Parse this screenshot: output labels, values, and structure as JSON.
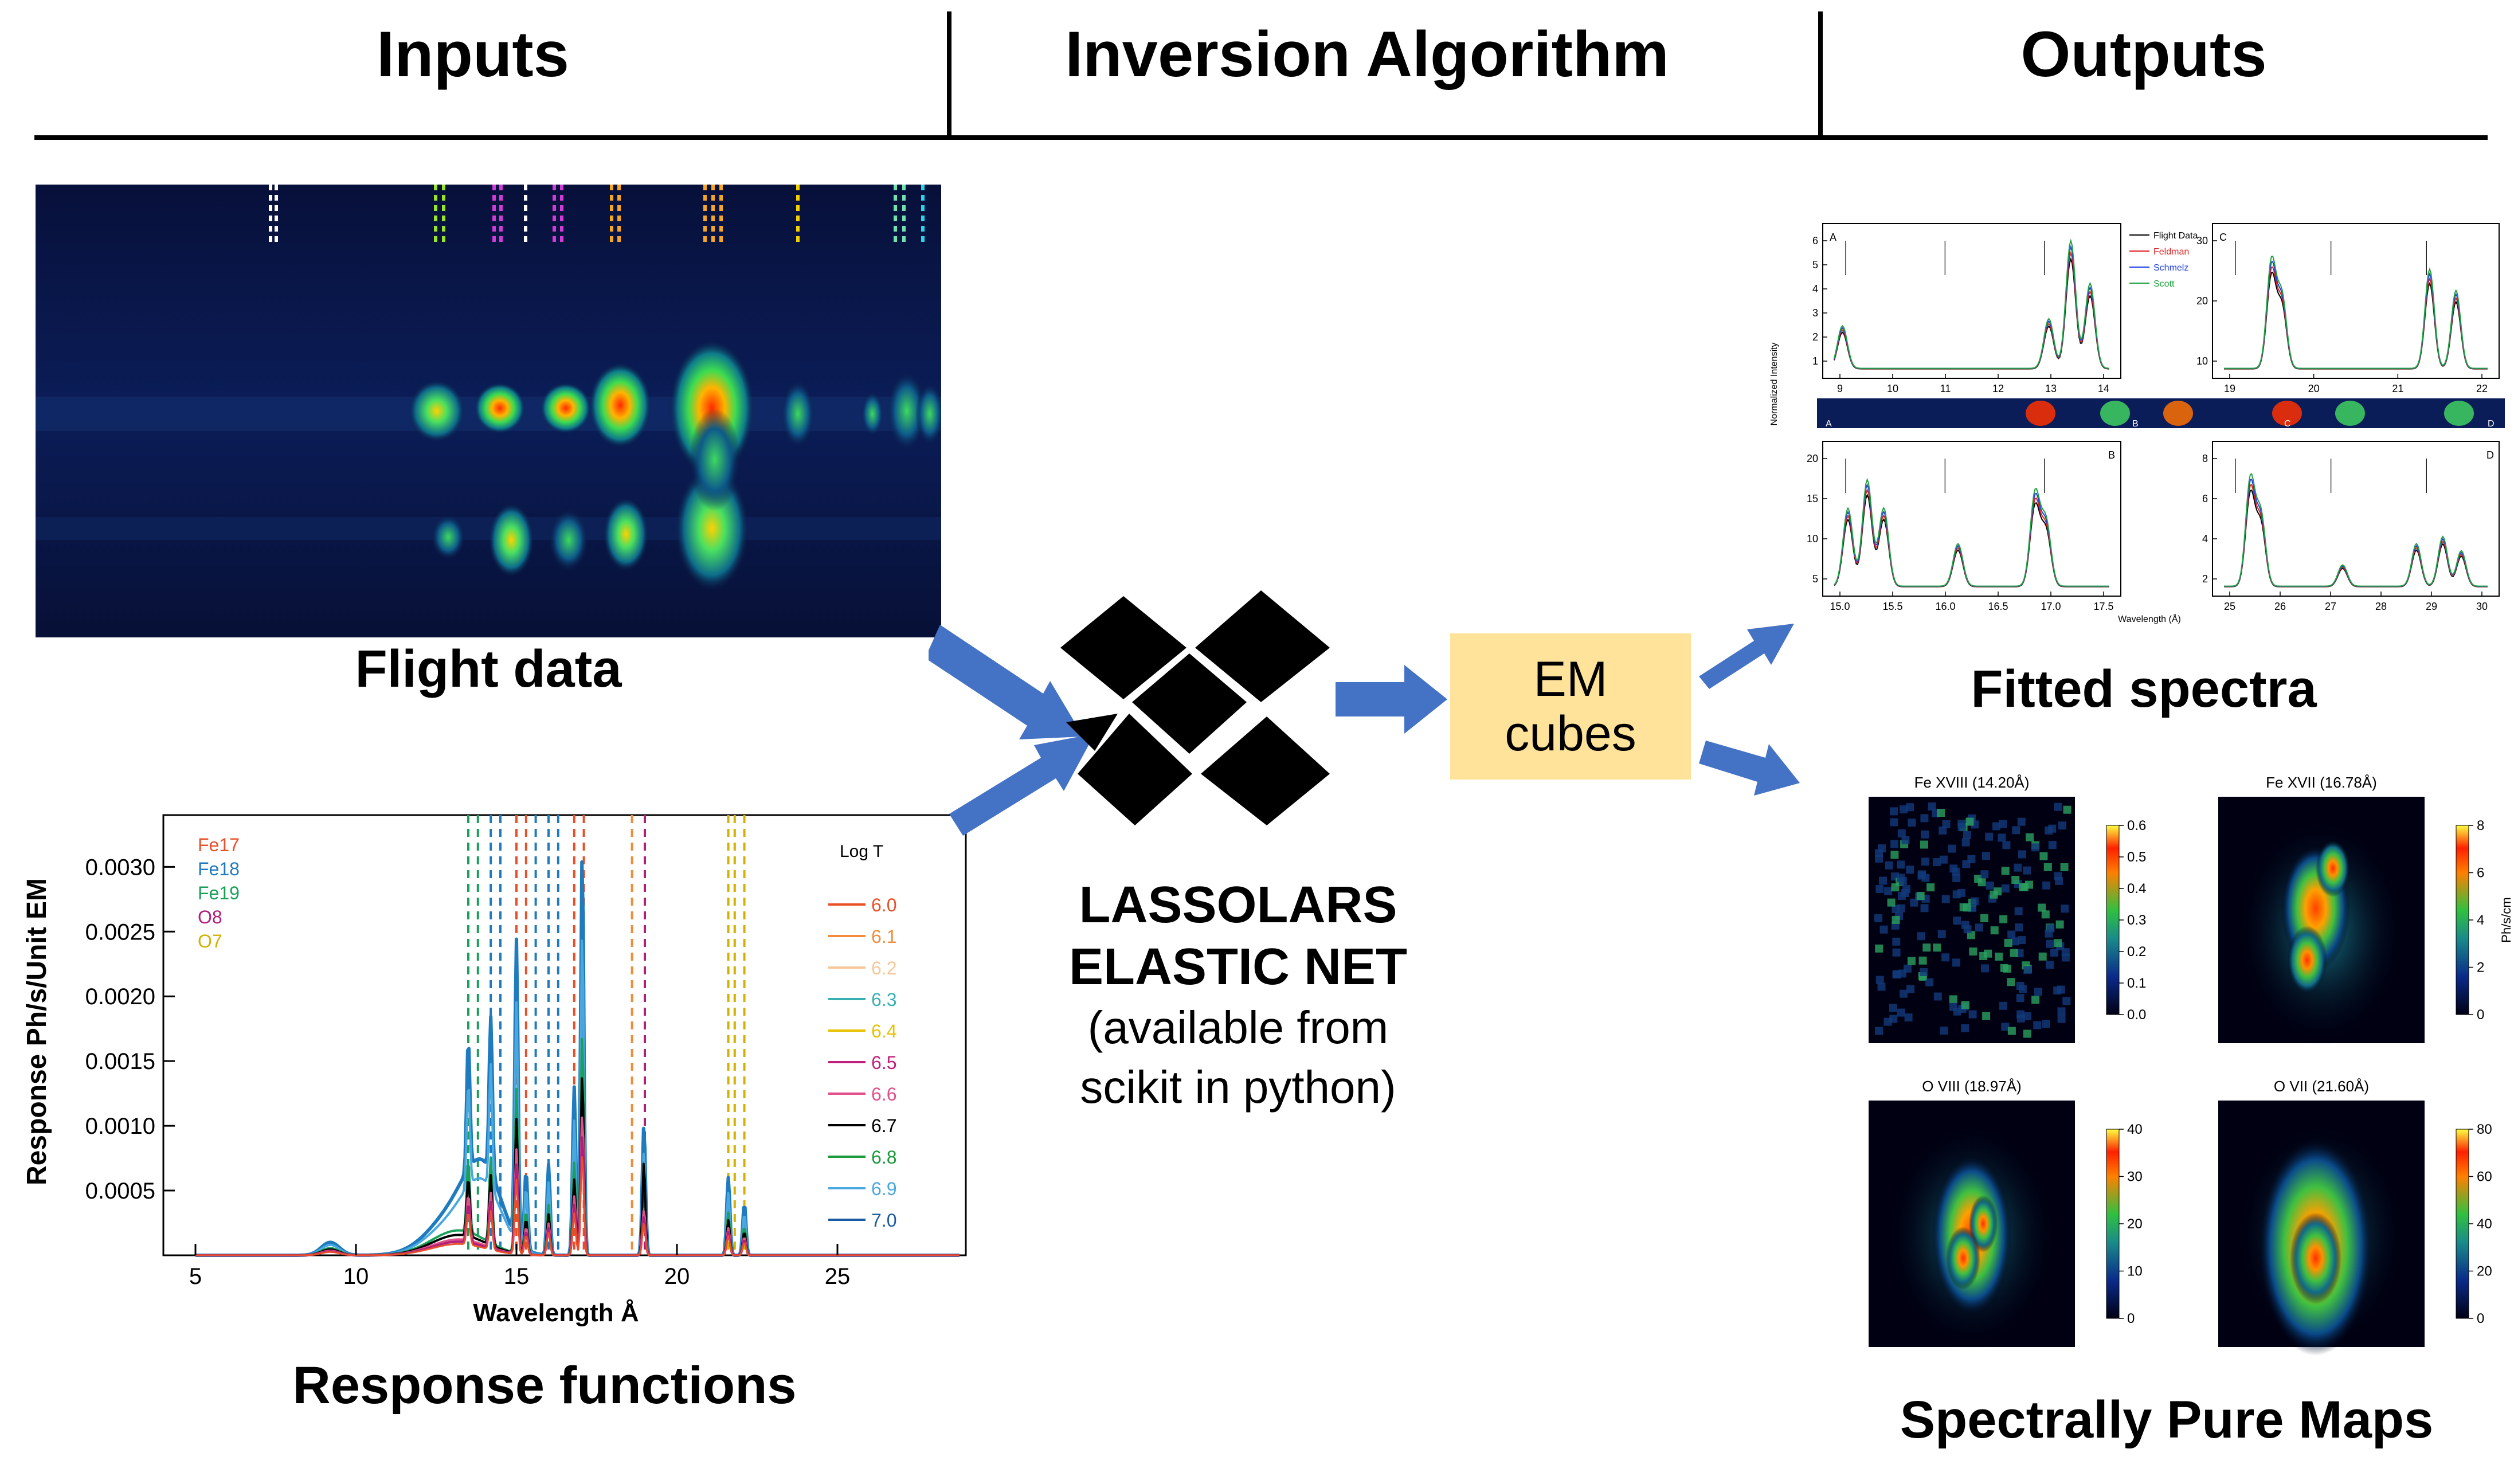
{
  "headers": {
    "inputs": "Inputs",
    "algorithm": "Inversion Algorithm",
    "outputs": "Outputs"
  },
  "captions": {
    "flight_data": "Flight data",
    "response_functions": "Response functions",
    "fitted_spectra": "Fitted spectra",
    "pure_maps": "Spectrally Pure Maps"
  },
  "algorithm": {
    "line1": "LASSOLARS",
    "line2": "ELASTIC NET",
    "line3": "(available from",
    "line4": "scikit in python)"
  },
  "em_box": {
    "line1": "EM",
    "line2": "cubes"
  },
  "colors": {
    "arrow": "#4472c4",
    "em_box": "#ffe39a",
    "flight_bg": "#0a1540"
  },
  "flight_data": {
    "marker_colors": [
      "#ffffff",
      "#9be22a",
      "#d13cd6",
      "#ffffff",
      "#d13cd6",
      "#f5a623",
      "#f5a623",
      "#f5d000",
      "#6fe2b0",
      "#2ad4e8"
    ]
  },
  "response_chart": {
    "type": "line",
    "xlabel": "Wavelength Å",
    "ylabel": "Response Ph/s/Unit EM",
    "xlim": [
      4,
      29
    ],
    "ylim": [
      0,
      0.0034
    ],
    "xticks": [
      5,
      10,
      15,
      20,
      25
    ],
    "yticks": [
      0.0005,
      0.001,
      0.0015,
      0.002,
      0.0025,
      0.003
    ],
    "ytick_labels": [
      "0.0005",
      "0.0010",
      "0.0015",
      "0.0020",
      "0.0025",
      "0.0030"
    ],
    "ions": [
      {
        "name": "Fe17",
        "color": "#e8502a"
      },
      {
        "name": "Fe18",
        "color": "#1f7bbf"
      },
      {
        "name": "Fe19",
        "color": "#1aa05a"
      },
      {
        "name": "O8",
        "color": "#b0207a"
      },
      {
        "name": "O7",
        "color": "#d4b000"
      }
    ],
    "legend_title": "Log T",
    "logT": [
      {
        "name": "6.0",
        "color": "#e8502a"
      },
      {
        "name": "6.1",
        "color": "#f08c3a"
      },
      {
        "name": "6.2",
        "color": "#f4c89a"
      },
      {
        "name": "6.3",
        "color": "#36b0b0"
      },
      {
        "name": "6.4",
        "color": "#e6c200"
      },
      {
        "name": "6.5",
        "color": "#c0207a"
      },
      {
        "name": "6.6",
        "color": "#e0508a"
      },
      {
        "name": "6.7",
        "color": "#000000"
      },
      {
        "name": "6.8",
        "color": "#1a9a3a"
      },
      {
        "name": "6.9",
        "color": "#4aa8e0"
      },
      {
        "name": "7.0",
        "color": "#1a5aa0"
      }
    ],
    "line_markers": [
      {
        "x": 13.5,
        "color": "#1aa05a"
      },
      {
        "x": 13.8,
        "color": "#1aa05a"
      },
      {
        "x": 14.2,
        "color": "#1f7bbf"
      },
      {
        "x": 14.5,
        "color": "#1f7bbf"
      },
      {
        "x": 15.0,
        "color": "#e8502a"
      },
      {
        "x": 15.3,
        "color": "#e8502a"
      },
      {
        "x": 15.6,
        "color": "#1f7bbf"
      },
      {
        "x": 16.0,
        "color": "#1f7bbf"
      },
      {
        "x": 16.3,
        "color": "#1f7bbf"
      },
      {
        "x": 16.8,
        "color": "#e8502a"
      },
      {
        "x": 17.1,
        "color": "#e8502a"
      },
      {
        "x": 18.6,
        "color": "#f08c3a"
      },
      {
        "x": 19.0,
        "color": "#b0207a"
      },
      {
        "x": 21.6,
        "color": "#d4b000"
      },
      {
        "x": 21.8,
        "color": "#d4b000"
      },
      {
        "x": 22.1,
        "color": "#d4b000"
      }
    ],
    "peaks": [
      {
        "x": 13.5,
        "y": 0.001
      },
      {
        "x": 14.2,
        "y": 0.0012
      },
      {
        "x": 15.0,
        "y": 0.0023
      },
      {
        "x": 15.3,
        "y": 0.0006
      },
      {
        "x": 16.0,
        "y": 0.0007
      },
      {
        "x": 16.8,
        "y": 0.0013
      },
      {
        "x": 17.05,
        "y": 0.0031
      },
      {
        "x": 18.97,
        "y": 0.001
      },
      {
        "x": 21.6,
        "y": 0.0006
      },
      {
        "x": 22.1,
        "y": 0.0004
      }
    ]
  },
  "fitted_spectra": {
    "legend": [
      {
        "name": "Flight Data",
        "color": "#000000"
      },
      {
        "name": "Feldman",
        "color": "#e02020"
      },
      {
        "name": "Schmelz",
        "color": "#2040e0"
      },
      {
        "name": "Scott",
        "color": "#20a040"
      }
    ],
    "ylabel": "Normalized Intensity",
    "xlabel": "Wavelength (Å)",
    "panels": [
      {
        "label": "A",
        "xticks": [
          "9",
          "10",
          "11",
          "12",
          "13",
          "14"
        ],
        "yticks": [
          "1",
          "2",
          "3",
          "4",
          "5",
          "6"
        ]
      },
      {
        "label": "C",
        "xticks": [
          "19",
          "20",
          "21",
          "22"
        ],
        "yticks": [
          "10",
          "20",
          "30"
        ]
      },
      {
        "label": "B",
        "xticks": [
          "15.0",
          "15.5",
          "16.0",
          "16.5",
          "17.0",
          "17.5"
        ],
        "yticks": [
          "5",
          "10",
          "15",
          "20"
        ]
      },
      {
        "label": "D",
        "xticks": [
          "25",
          "26",
          "27",
          "28",
          "29",
          "30"
        ],
        "yticks": [
          "2",
          "4",
          "6",
          "8"
        ]
      }
    ],
    "strip_labels": [
      "A",
      "B",
      "C",
      "D"
    ]
  },
  "maps": [
    {
      "title": "Fe XVIII (14.20Å)",
      "ticks": [
        "0.0",
        "0.1",
        "0.2",
        "0.3",
        "0.4",
        "0.5",
        "0.6"
      ]
    },
    {
      "title": "Fe XVII (16.78Å)",
      "ticks": [
        "0",
        "2",
        "4",
        "6",
        "8"
      ],
      "unit": "Ph/s/cm"
    },
    {
      "title": "O VIII (18.97Å)",
      "ticks": [
        "0",
        "10",
        "20",
        "30",
        "40"
      ]
    },
    {
      "title": "O VII (21.60Å)",
      "ticks": [
        "0",
        "20",
        "40",
        "60",
        "80"
      ]
    }
  ]
}
